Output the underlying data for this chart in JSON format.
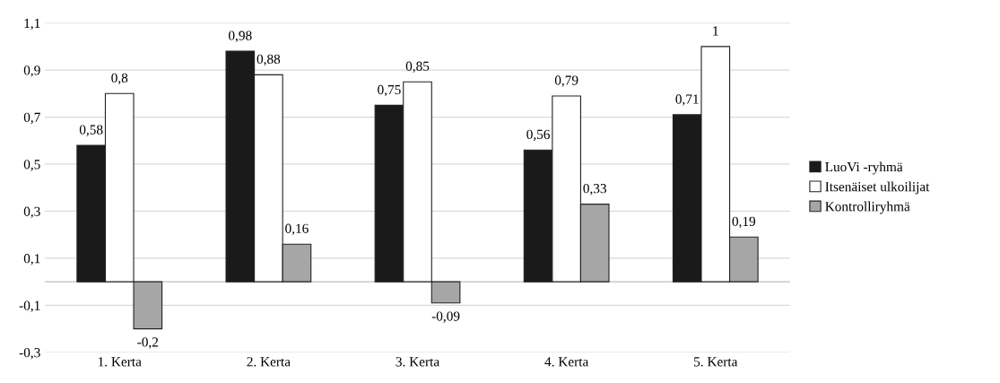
{
  "chart_data": {
    "type": "bar",
    "categories": [
      "1. Kerta",
      "2. Kerta",
      "3. Kerta",
      "4. Kerta",
      "5. Kerta"
    ],
    "series": [
      {
        "name": "LuoVi -ryhmä",
        "color": "#1a1a1a",
        "values": [
          0.58,
          0.98,
          0.75,
          0.56,
          0.71
        ],
        "value_labels": [
          "0,58",
          "0,98",
          "0,75",
          "0,56",
          "0,71"
        ]
      },
      {
        "name": "Itsenäiset ulkoilijat",
        "color": "#ffffff",
        "values": [
          0.8,
          0.88,
          0.85,
          0.79,
          1
        ],
        "value_labels": [
          "0,8",
          "0,88",
          "0,85",
          "0,79",
          "1"
        ]
      },
      {
        "name": "Kontrolliryhmä",
        "color": "#a6a6a6",
        "values": [
          -0.2,
          0.16,
          -0.09,
          0.33,
          0.19
        ],
        "value_labels": [
          "-0,2",
          "0,16",
          "-0,09",
          "0,33",
          "0,19"
        ]
      }
    ],
    "ylim": [
      -0.3,
      1.1
    ],
    "yticks": [
      {
        "value": -0.3,
        "label": "-0,3"
      },
      {
        "value": -0.1,
        "label": "-0,1"
      },
      {
        "value": 0.1,
        "label": "0,1"
      },
      {
        "value": 0.3,
        "label": "0,3"
      },
      {
        "value": 0.5,
        "label": "0,5"
      },
      {
        "value": 0.7,
        "label": "0,7"
      },
      {
        "value": 0.9,
        "label": "0,9"
      },
      {
        "value": 1.1,
        "label": "1,1"
      }
    ],
    "grid": "y",
    "legend": "right"
  }
}
